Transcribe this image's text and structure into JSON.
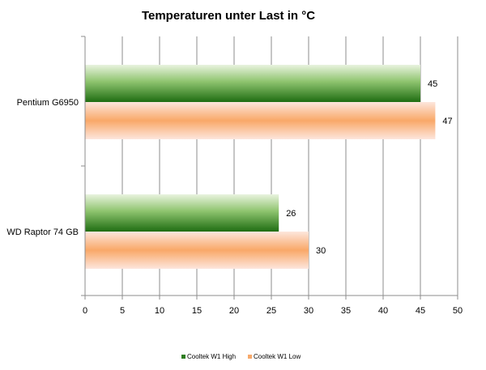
{
  "chart_data": {
    "type": "bar",
    "orientation": "horizontal",
    "title": "Temperaturen unter Last in °C",
    "xlabel": "",
    "ylabel": "",
    "categories": [
      "Pentium G6950",
      "WD Raptor 74 GB"
    ],
    "series": [
      {
        "name": "Cooltek W1 High",
        "values": [
          45,
          26
        ],
        "color": "#2e7d1e"
      },
      {
        "name": "Cooltek W1 Low",
        "values": [
          47,
          30
        ],
        "color": "#f7a96b"
      }
    ],
    "xlim": [
      0,
      50
    ],
    "xticks": [
      0,
      5,
      10,
      15,
      20,
      25,
      30,
      35,
      40,
      45,
      50
    ],
    "grid": true,
    "legend_position": "bottom"
  }
}
